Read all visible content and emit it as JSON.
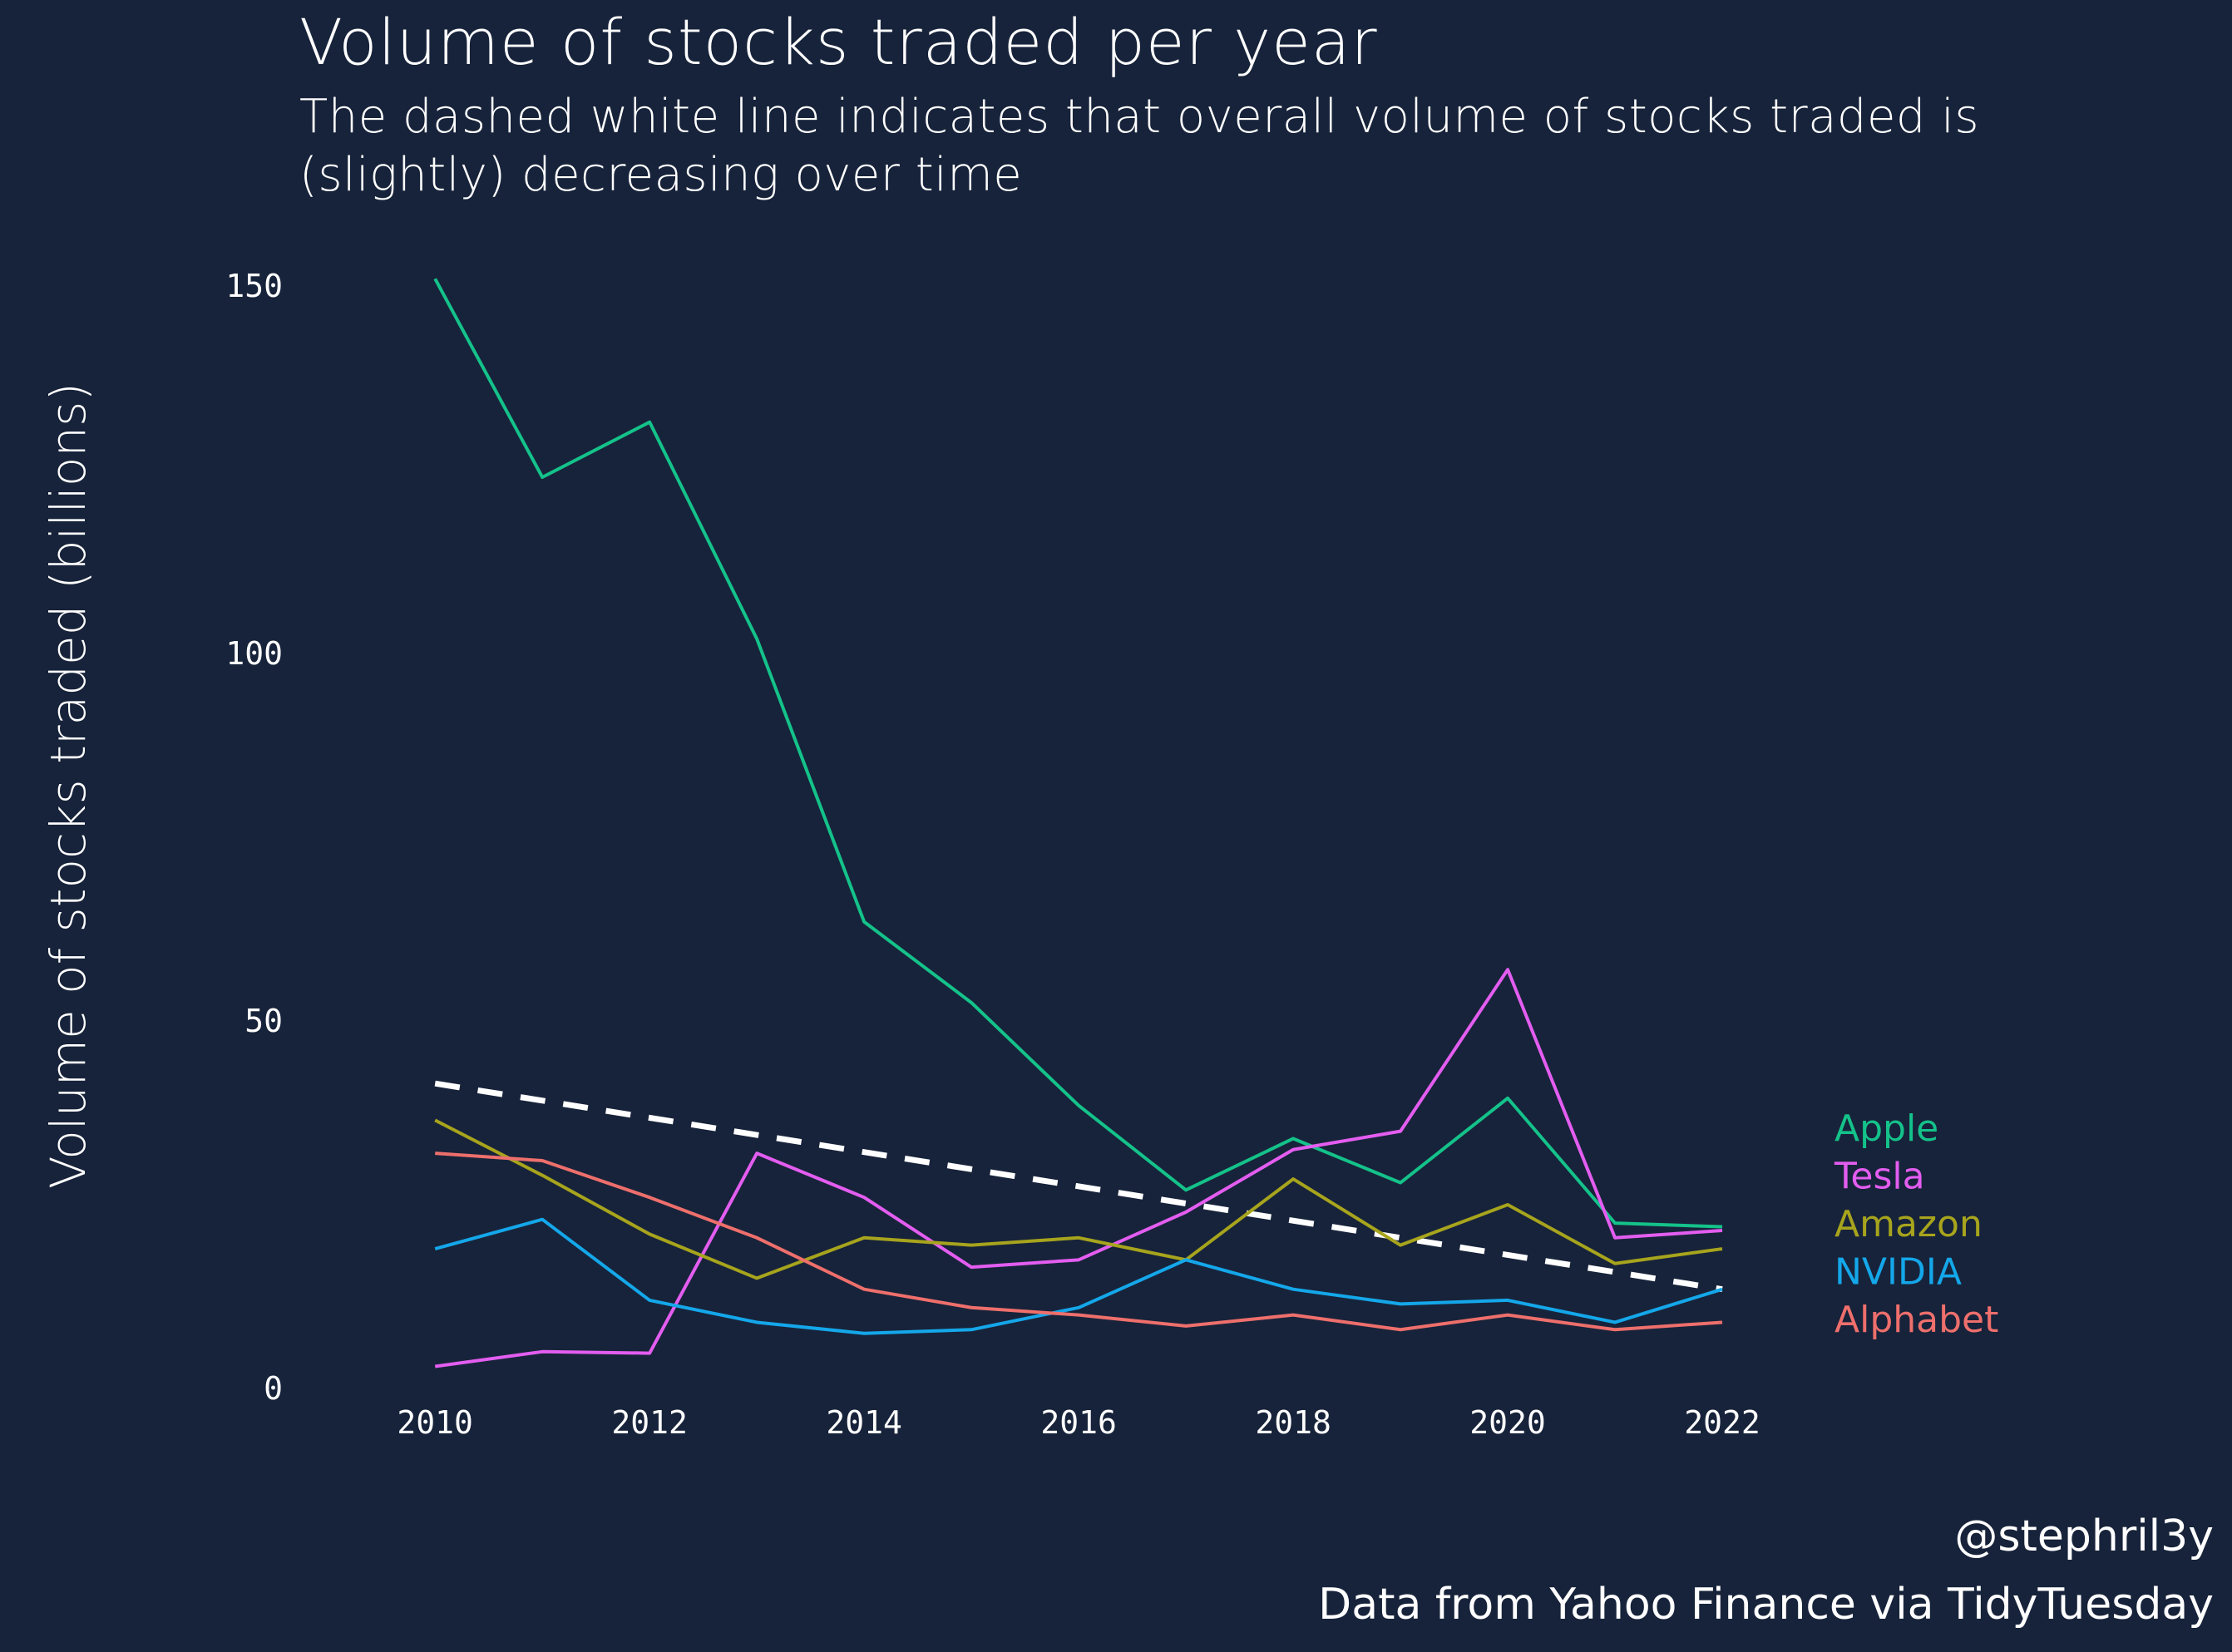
{
  "chart_data": {
    "type": "line",
    "title": "Volume of stocks traded per year",
    "subtitle": "The dashed white line indicates that overall volume of stocks traded is (slightly) decreasing over time",
    "xlabel": "",
    "ylabel": "Volume of stocks traded (billions)",
    "xlim": [
      2009.2,
      2023
    ],
    "ylim": [
      0,
      155
    ],
    "x_ticks": [
      2010,
      2012,
      2014,
      2016,
      2018,
      2020,
      2022
    ],
    "y_ticks": [
      0,
      50,
      100,
      150
    ],
    "grid": false,
    "legend_placement": "right (direct labels at line ends)",
    "x": [
      2010,
      2011,
      2012,
      2013,
      2014,
      2015,
      2016,
      2017,
      2018,
      2019,
      2020,
      2021,
      2022
    ],
    "series": [
      {
        "name": "Apple",
        "color": "#14c28a",
        "values": [
          151,
          124,
          131.5,
          102,
          63.5,
          52.5,
          38.5,
          27,
          34,
          28,
          39.5,
          22.5,
          22
        ]
      },
      {
        "name": "Tesla",
        "color": "#e35df0",
        "values": [
          3,
          5,
          4.8,
          32,
          26,
          16.5,
          17.5,
          24,
          32.5,
          35,
          57,
          20.5,
          21.5
        ]
      },
      {
        "name": "Amazon",
        "color": "#a7a41d",
        "values": [
          36.5,
          29,
          21,
          15,
          20.5,
          19.5,
          20.5,
          17.5,
          28.5,
          19.5,
          25,
          17,
          19
        ]
      },
      {
        "name": "NVIDIA",
        "color": "#14a7ea",
        "values": [
          19,
          23,
          12,
          9,
          7.5,
          8,
          11,
          17.5,
          13.5,
          11.5,
          12,
          9,
          13.5
        ]
      },
      {
        "name": "Alphabet",
        "color": "#ee6f6c",
        "values": [
          32,
          31,
          26,
          20.5,
          13.5,
          11,
          10,
          8.5,
          10,
          8,
          10,
          8,
          9
        ]
      }
    ],
    "trend_line": {
      "color": "#ffffff",
      "style": "dashed",
      "x": [
        2010,
        2022
      ],
      "values": [
        41.5,
        13.5
      ]
    }
  },
  "footer": {
    "handle": "@stephril3y",
    "source": "Data from Yahoo Finance via TidyTuesday"
  }
}
